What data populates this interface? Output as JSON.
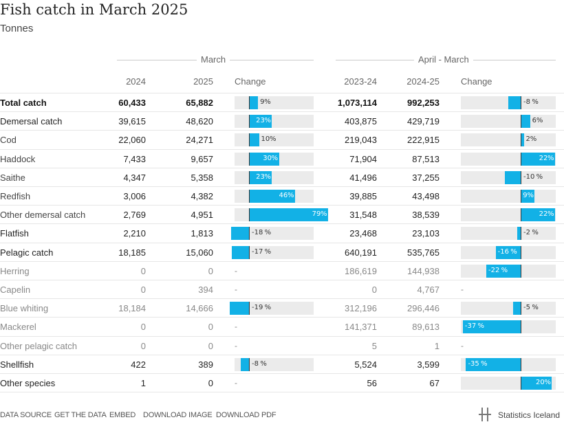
{
  "chart_data": {
    "type": "table",
    "title": "Fish catch in March 2025",
    "subtitle": "Tonnes",
    "groups": [
      "March",
      "April - March"
    ],
    "columns": [
      "2024",
      "2025",
      "Change",
      "2023-24",
      "2024-25",
      "Change"
    ],
    "rows": [
      {
        "label": "Total catch",
        "style": "bold",
        "m2024": "60,433",
        "m2025": "65,882",
        "mchg": 9,
        "a1": "1,073,114",
        "a2": "992,253",
        "achg": -8
      },
      {
        "label": "Demersal catch",
        "style": "normal",
        "m2024": "39,615",
        "m2025": "48,620",
        "mchg": 23,
        "a1": "403,875",
        "a2": "429,719",
        "achg": 6
      },
      {
        "label": "Cod",
        "style": "sub",
        "m2024": "22,060",
        "m2025": "24,271",
        "mchg": 10,
        "a1": "219,043",
        "a2": "222,915",
        "achg": 2
      },
      {
        "label": "Haddock",
        "style": "sub",
        "m2024": "7,433",
        "m2025": "9,657",
        "mchg": 30,
        "a1": "71,904",
        "a2": "87,513",
        "achg": 22
      },
      {
        "label": "Saithe",
        "style": "sub",
        "m2024": "4,347",
        "m2025": "5,358",
        "mchg": 23,
        "a1": "41,496",
        "a2": "37,255",
        "achg": -10
      },
      {
        "label": "Redfish",
        "style": "sub",
        "m2024": "3,006",
        "m2025": "4,382",
        "mchg": 46,
        "a1": "39,885",
        "a2": "43,498",
        "achg": 9
      },
      {
        "label": "Other demersal catch",
        "style": "sub",
        "m2024": "2,769",
        "m2025": "4,951",
        "mchg": 79,
        "a1": "31,548",
        "a2": "38,539",
        "achg": 22
      },
      {
        "label": "Flatfish",
        "style": "normal",
        "m2024": "2,210",
        "m2025": "1,813",
        "mchg": -18,
        "a1": "23,468",
        "a2": "23,103",
        "achg": -2
      },
      {
        "label": "Pelagic catch",
        "style": "normal",
        "m2024": "18,185",
        "m2025": "15,060",
        "mchg": -17,
        "a1": "640,191",
        "a2": "535,765",
        "achg": -16
      },
      {
        "label": "Herring",
        "style": "muted",
        "m2024": "0",
        "m2025": "0",
        "mchg": null,
        "a1": "186,619",
        "a2": "144,938",
        "achg": -22
      },
      {
        "label": "Capelin",
        "style": "muted",
        "m2024": "0",
        "m2025": "394",
        "mchg": null,
        "a1": "0",
        "a2": "4,767",
        "achg": null
      },
      {
        "label": "Blue whiting",
        "style": "muted",
        "m2024": "18,184",
        "m2025": "14,666",
        "mchg": -19,
        "a1": "312,196",
        "a2": "296,446",
        "achg": -5
      },
      {
        "label": "Mackerel",
        "style": "muted",
        "m2024": "0",
        "m2025": "0",
        "mchg": null,
        "a1": "141,371",
        "a2": "89,613",
        "achg": -37
      },
      {
        "label": "Other pelagic catch",
        "style": "muted",
        "m2024": "0",
        "m2025": "0",
        "mchg": null,
        "a1": "5",
        "a2": "1",
        "achg": null
      },
      {
        "label": "Shellfish",
        "style": "normal",
        "m2024": "422",
        "m2025": "389",
        "mchg": -8,
        "a1": "5,524",
        "a2": "3,599",
        "achg": -35
      },
      {
        "label": "Other species",
        "style": "normal",
        "m2024": "1",
        "m2025": "0",
        "mchg": null,
        "a1": "56",
        "a2": "67",
        "achg": 20
      }
    ],
    "no_change_symbol": "-",
    "percent_suffix": "%",
    "bar_color": "#12b1e6",
    "track_color": "#ebebeb"
  },
  "footer": {
    "links": [
      "DATA SOURCE",
      "GET THE DATA",
      "EMBED",
      "DOWNLOAD IMAGE",
      "DOWNLOAD PDF"
    ],
    "brand": "Statistics Iceland",
    "brand_icon": "statistics-iceland-logo"
  }
}
